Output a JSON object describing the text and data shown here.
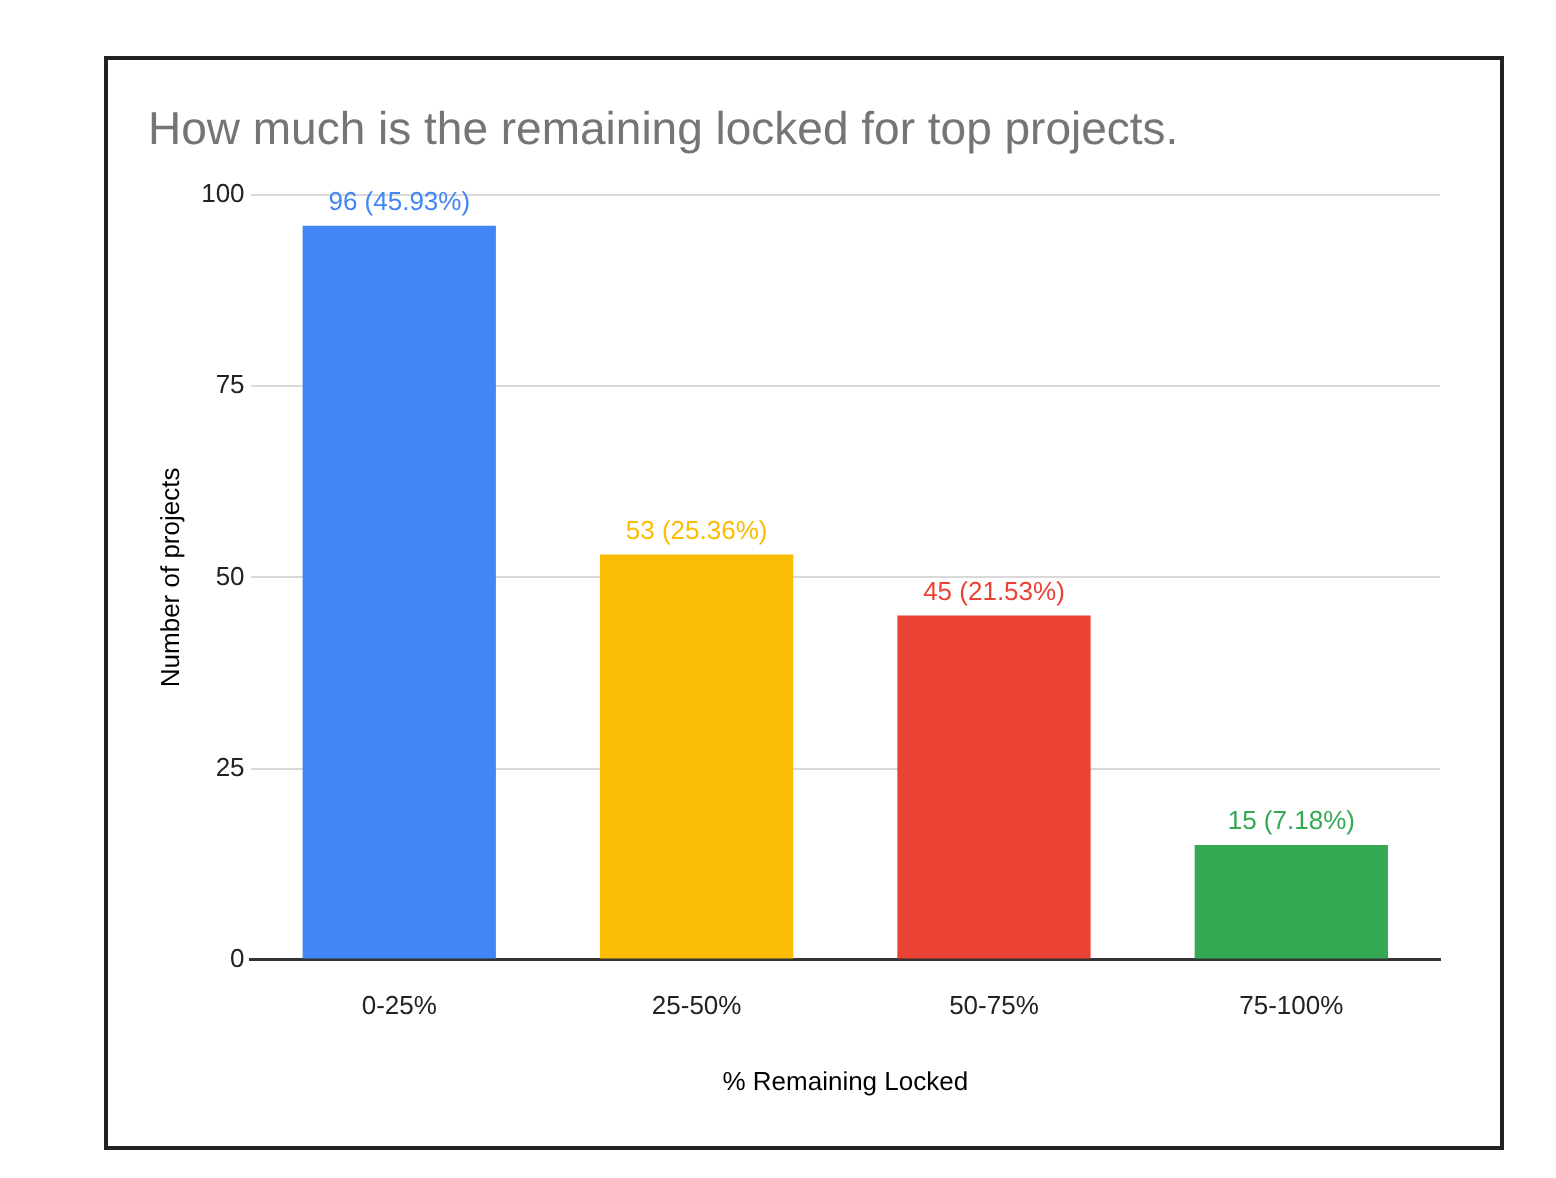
{
  "chart_data": {
    "type": "bar",
    "title": "How much is the remaining locked for top projects.",
    "xlabel": "% Remaining Locked",
    "ylabel": "Number of projects",
    "categories": [
      "0-25%",
      "25-50%",
      "50-75%",
      "75-100%"
    ],
    "values": [
      96,
      53,
      45,
      15
    ],
    "colors": [
      "#4285f4",
      "#fbbc04",
      "#ea4335",
      "#34a853"
    ],
    "value_labels": [
      "96 (45.93%)",
      "53 (25.36%)",
      "45 (21.53%)",
      "15 (7.18%)"
    ],
    "ylim": [
      0,
      100
    ],
    "yticks": [
      0,
      25,
      50,
      75,
      100
    ],
    "grid": "y",
    "legend": false
  }
}
